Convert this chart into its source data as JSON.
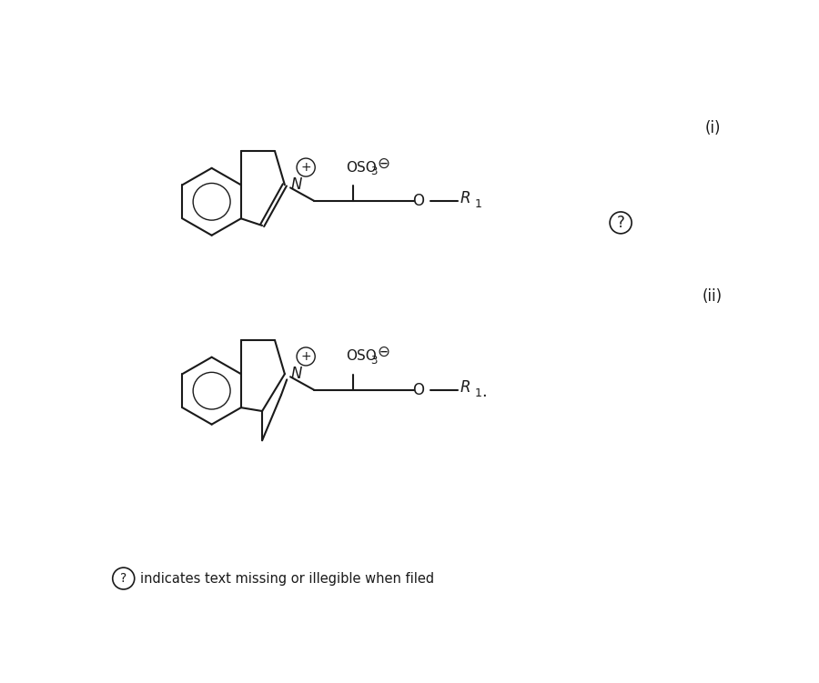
{
  "background_color": "#ffffff",
  "line_color": "#1a1a1a",
  "text_color": "#1a1a1a",
  "figsize": [
    9.0,
    7.51
  ],
  "dpi": 100,
  "label_i": "(i)",
  "label_ii": "(ii)",
  "footer_text": "indicates text missing or illegible when filed"
}
